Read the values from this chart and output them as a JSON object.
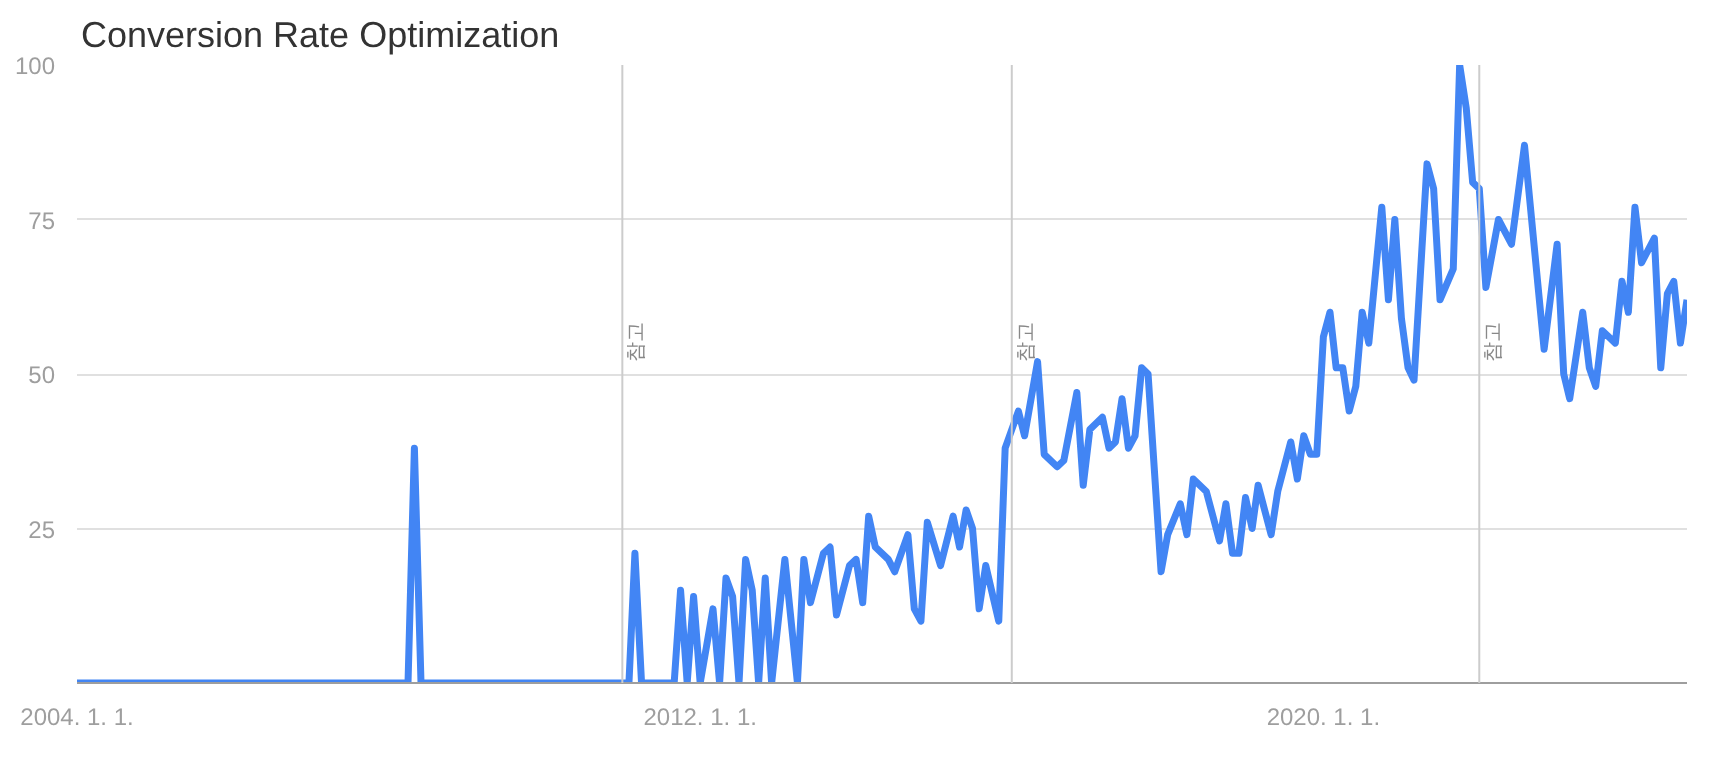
{
  "chart_data": {
    "type": "line",
    "title": "Conversion Rate Optimization",
    "xlim": [
      "2004-01-01",
      "2024-09-01"
    ],
    "xticks": [
      {
        "value": "2004-01-01",
        "label": "2004. 1. 1."
      },
      {
        "value": "2012-01-01",
        "label": "2012. 1. 1."
      },
      {
        "value": "2020-01-01",
        "label": "2020. 1. 1."
      }
    ],
    "ylim": [
      0,
      100
    ],
    "yticks": [
      {
        "value": 0,
        "label": null
      },
      25,
      50,
      75,
      100
    ],
    "grid": "y",
    "marker": "none",
    "line_style": "solid",
    "ref_lines": [
      {
        "axis": "x",
        "value": "2011-01-01",
        "label": "참고",
        "color": "#cccccc"
      },
      {
        "axis": "x",
        "value": "2016-01-01",
        "label": "참고",
        "color": "#cccccc"
      },
      {
        "axis": "x",
        "value": "2022-01-01",
        "label": "참고",
        "color": "#cccccc"
      }
    ],
    "series": [
      {
        "color": "#4285f4",
        "x": [
          "2004-01",
          "2008-04",
          "2008-05",
          "2008-06",
          "2011-02",
          "2011-03",
          "2011-04",
          "2011-09",
          "2011-10",
          "2011-11",
          "2011-12",
          "2012-01",
          "2012-03",
          "2012-04",
          "2012-05",
          "2012-06",
          "2012-07",
          "2012-08",
          "2012-09",
          "2012-10",
          "2012-11",
          "2012-12",
          "2013-02",
          "2013-04",
          "2013-05",
          "2013-06",
          "2013-08",
          "2013-09",
          "2013-10",
          "2013-12",
          "2014-01",
          "2014-02",
          "2014-03",
          "2014-04",
          "2014-06",
          "2014-07",
          "2014-09",
          "2014-10",
          "2014-11",
          "2014-12",
          "2015-02",
          "2015-04",
          "2015-05",
          "2015-06",
          "2015-07",
          "2015-08",
          "2015-09",
          "2015-11",
          "2015-12",
          "2016-02",
          "2016-03",
          "2016-05",
          "2016-06",
          "2016-08",
          "2016-09",
          "2016-11",
          "2016-12",
          "2017-01",
          "2017-03",
          "2017-04",
          "2017-05",
          "2017-06",
          "2017-07",
          "2017-08",
          "2017-09",
          "2017-10",
          "2017-12",
          "2018-01",
          "2018-03",
          "2018-04",
          "2018-05",
          "2018-07",
          "2018-09",
          "2018-10",
          "2018-11",
          "2018-12",
          "2019-01",
          "2019-02",
          "2019-03",
          "2019-05",
          "2019-06",
          "2019-08",
          "2019-09",
          "2019-10",
          "2019-11",
          "2019-12",
          "2020-01",
          "2020-02",
          "2020-03",
          "2020-04",
          "2020-05",
          "2020-06",
          "2020-07",
          "2020-08",
          "2020-10",
          "2020-11",
          "2020-12",
          "2021-01",
          "2021-02",
          "2021-03",
          "2021-05",
          "2021-06",
          "2021-07",
          "2021-09",
          "2021-10",
          "2021-11",
          "2021-12",
          "2022-01",
          "2022-02",
          "2022-04",
          "2022-06",
          "2022-08",
          "2022-11",
          "2023-01",
          "2023-02",
          "2023-03",
          "2023-05",
          "2023-06",
          "2023-07",
          "2023-08",
          "2023-10",
          "2023-11",
          "2023-12",
          "2024-01",
          "2024-02",
          "2024-04",
          "2024-05",
          "2024-06",
          "2024-07",
          "2024-08",
          "2024-09"
        ],
        "values": [
          0,
          0,
          38,
          0,
          0,
          21,
          0,
          0,
          15,
          0,
          14,
          0,
          12,
          0,
          17,
          14,
          0,
          20,
          15,
          0,
          17,
          0,
          20,
          0,
          20,
          13,
          21,
          22,
          11,
          19,
          20,
          13,
          27,
          22,
          20,
          18,
          24,
          12,
          10,
          26,
          19,
          27,
          22,
          28,
          25,
          12,
          19,
          10,
          38,
          44,
          40,
          52,
          37,
          35,
          36,
          47,
          32,
          41,
          43,
          38,
          39,
          46,
          38,
          40,
          51,
          50,
          18,
          24,
          29,
          24,
          33,
          31,
          23,
          29,
          21,
          21,
          30,
          25,
          32,
          24,
          31,
          39,
          33,
          40,
          37,
          37,
          56,
          60,
          51,
          51,
          44,
          48,
          60,
          55,
          77,
          62,
          75,
          59,
          51,
          49,
          84,
          80,
          62,
          67,
          100,
          93,
          81,
          80,
          64,
          75,
          71,
          87,
          54,
          71,
          50,
          46,
          60,
          51,
          48,
          57,
          55,
          65,
          60,
          77,
          68,
          72,
          51,
          63,
          65,
          55,
          62
        ]
      }
    ]
  }
}
